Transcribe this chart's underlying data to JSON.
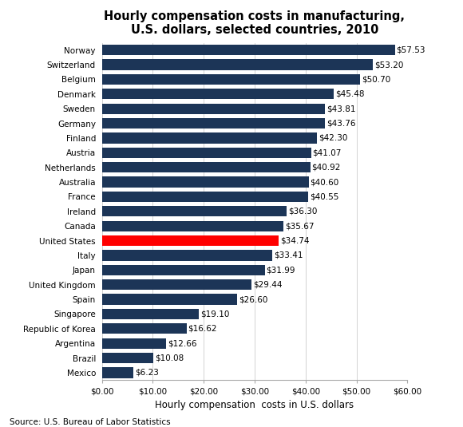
{
  "title": "Hourly compensation costs in manufacturing,\nU.S. dollars, selected countries, 2010",
  "xlabel": "Hourly compensation  costs in U.S. dollars",
  "source": "Source: U.S. Bureau of Labor Statistics",
  "countries": [
    "Norway",
    "Switzerland",
    "Belgium",
    "Denmark",
    "Sweden",
    "Germany",
    "Finland",
    "Austria",
    "Netherlands",
    "Australia",
    "France",
    "Ireland",
    "Canada",
    "United States",
    "Italy",
    "Japan",
    "United Kingdom",
    "Spain",
    "Singapore",
    "Republic of Korea",
    "Argentina",
    "Brazil",
    "Mexico"
  ],
  "values": [
    57.53,
    53.2,
    50.7,
    45.48,
    43.81,
    43.76,
    42.3,
    41.07,
    40.92,
    40.6,
    40.55,
    36.3,
    35.67,
    34.74,
    33.41,
    31.99,
    29.44,
    26.6,
    19.1,
    16.62,
    12.66,
    10.08,
    6.23
  ],
  "bar_color_default": "#1C3557",
  "bar_color_us": "#FF0000",
  "us_index": 13,
  "xlim": [
    0,
    60
  ],
  "xticks": [
    0,
    10,
    20,
    30,
    40,
    50,
    60
  ],
  "xtick_labels": [
    "$0.00",
    "$10.00",
    "$20.00",
    "$30.00",
    "$40.00",
    "$50.00",
    "$60.00"
  ],
  "label_fontsize": 7.5,
  "title_fontsize": 10.5,
  "xlabel_fontsize": 8.5,
  "source_fontsize": 7.5,
  "bar_height": 0.72,
  "figure_width": 5.8,
  "figure_height": 5.35,
  "dpi": 100,
  "background_color": "#FFFFFF",
  "grid_color": "#CCCCCC"
}
